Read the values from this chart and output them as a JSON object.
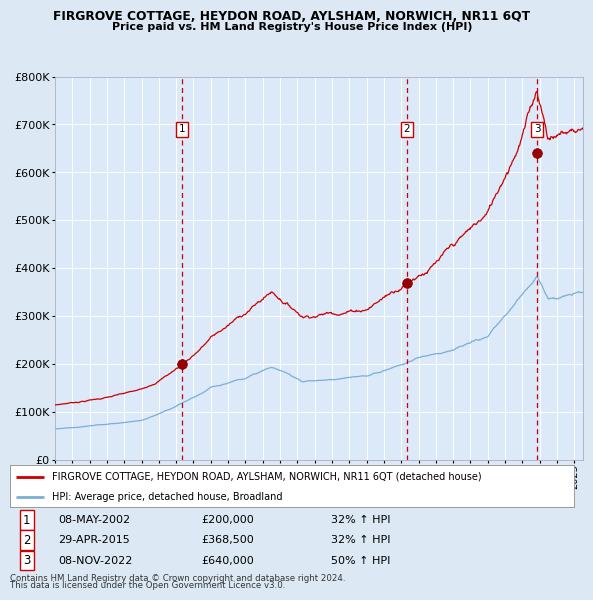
{
  "title": "FIRGROVE COTTAGE, HEYDON ROAD, AYLSHAM, NORWICH, NR11 6QT",
  "subtitle": "Price paid vs. HM Land Registry's House Price Index (HPI)",
  "legend_red": "FIRGROVE COTTAGE, HEYDON ROAD, AYLSHAM, NORWICH, NR11 6QT (detached house)",
  "legend_blue": "HPI: Average price, detached house, Broadland",
  "transactions": [
    {
      "num": 1,
      "date": "08-MAY-2002",
      "price": 200000,
      "price_str": "£200,000",
      "change": "32%",
      "direction": "↑",
      "ref": "HPI",
      "year": 2002.35
    },
    {
      "num": 2,
      "date": "29-APR-2015",
      "price": 368500,
      "price_str": "£368,500",
      "change": "32%",
      "direction": "↑",
      "ref": "HPI",
      "year": 2015.32
    },
    {
      "num": 3,
      "date": "08-NOV-2022",
      "price": 640000,
      "price_str": "£640,000",
      "change": "50%",
      "direction": "↑",
      "ref": "HPI",
      "year": 2022.85
    }
  ],
  "footnote1": "Contains HM Land Registry data © Crown copyright and database right 2024.",
  "footnote2": "This data is licensed under the Open Government Licence v3.0.",
  "ylim": [
    0,
    800000
  ],
  "xlim_start": 1995,
  "xlim_end": 2025.5,
  "bg_color": "#dce9f5",
  "plot_bg": "#dce9f8",
  "red_color": "#cc0000",
  "blue_color": "#7bafd4",
  "grid_color": "#ffffff",
  "dashed_color": "#cc0000",
  "yticks": [
    0,
    100000,
    200000,
    300000,
    400000,
    500000,
    600000,
    700000,
    800000
  ],
  "ytick_labels": [
    "£0",
    "£100K",
    "£200K",
    "£300K",
    "£400K",
    "£500K",
    "£600K",
    "£700K",
    "£800K"
  ]
}
